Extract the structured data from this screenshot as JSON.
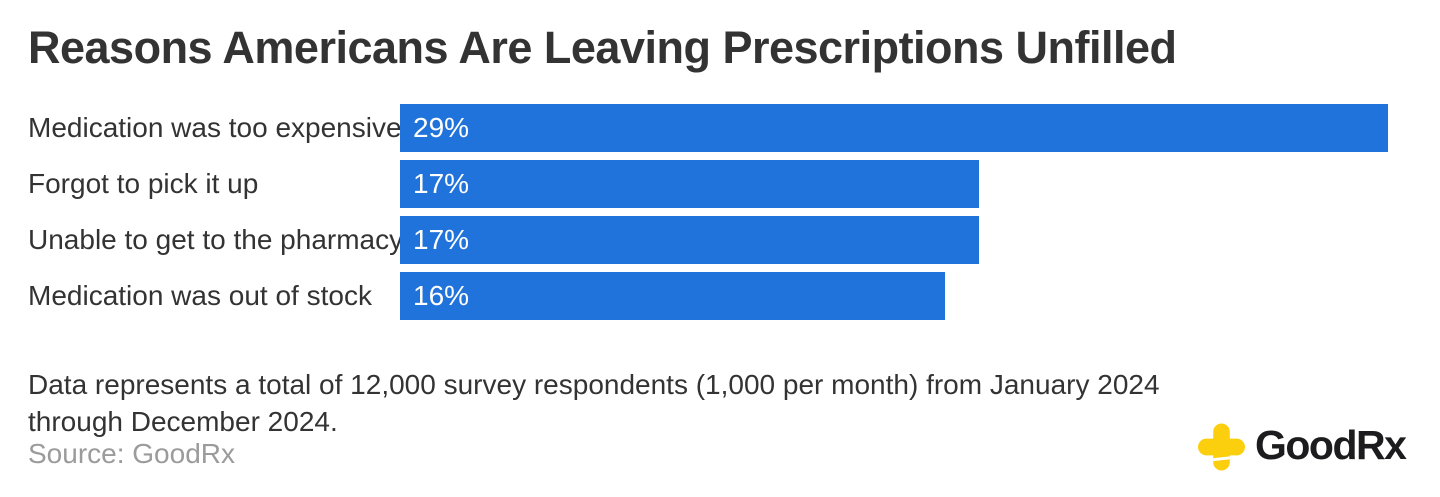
{
  "title": "Reasons Americans Are Leaving Prescriptions Unfilled",
  "chart_data": {
    "type": "bar",
    "orientation": "horizontal",
    "title": "Reasons Americans Are Leaving Prescriptions Unfilled",
    "categories": [
      "Medication was too expensive",
      "Forgot to pick it up",
      "Unable to get to the pharmacy",
      "Medication was out of stock"
    ],
    "values": [
      29,
      17,
      17,
      16
    ],
    "value_labels": [
      "29%",
      "17%",
      "17%",
      "16%"
    ],
    "xlabel": "",
    "ylabel": "",
    "xlim": [
      0,
      29
    ],
    "grid": false,
    "legend": false,
    "bar_color": "#2173dc",
    "value_label_color": "#ffffff"
  },
  "footnote": {
    "line1": "Data represents a total of 12,000 survey respondents (1,000 per month) from January 2024",
    "line2": "through December 2024."
  },
  "source": {
    "text": "Source: GoodRx"
  },
  "logo": {
    "wordmark": "GoodRx",
    "cross_icon_color": "#fbcf0d",
    "wordmark_color": "#1c1c1e"
  },
  "colors": {
    "background": "#ffffff",
    "title_text": "#333333",
    "label_text": "#333333",
    "footnote_text": "#333333",
    "source_text": "#9b9b9b"
  }
}
